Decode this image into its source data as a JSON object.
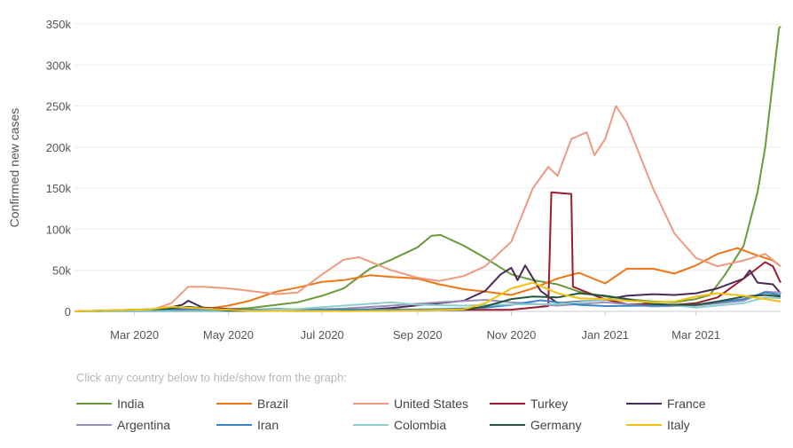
{
  "hint_text": "Click any country below to hide/show from the graph:",
  "chart_data": {
    "type": "line",
    "ylabel": "Confirmed new cases",
    "xlabel": "",
    "ylim": [
      0,
      350000
    ],
    "y_ticks": [
      0,
      50000,
      100000,
      150000,
      200000,
      250000,
      300000,
      350000
    ],
    "y_tick_labels": [
      "0",
      "50k",
      "100k",
      "150k",
      "200k",
      "250k",
      "300k",
      "350k"
    ],
    "x_range": [
      "2020-01-22",
      "2021-04-25"
    ],
    "x_ticks": [
      "2020-03-01",
      "2020-05-01",
      "2020-07-01",
      "2020-09-01",
      "2020-11-01",
      "2021-01-01",
      "2021-03-01"
    ],
    "x_tick_labels": [
      "Mar 2020",
      "May 2020",
      "Jul 2020",
      "Sep 2020",
      "Nov 2020",
      "Jan 2021",
      "Mar 2021"
    ],
    "grid": true,
    "legend_position": "bottom",
    "series": [
      {
        "name": "India",
        "color": "#6a9a3a",
        "points": [
          [
            "2020-01-22",
            0
          ],
          [
            "2020-03-15",
            100
          ],
          [
            "2020-04-15",
            1000
          ],
          [
            "2020-05-15",
            4000
          ],
          [
            "2020-06-15",
            11000
          ],
          [
            "2020-07-01",
            19000
          ],
          [
            "2020-07-15",
            28000
          ],
          [
            "2020-08-01",
            52000
          ],
          [
            "2020-08-15",
            63000
          ],
          [
            "2020-09-01",
            78000
          ],
          [
            "2020-09-10",
            92000
          ],
          [
            "2020-09-16",
            93000
          ],
          [
            "2020-10-01",
            80000
          ],
          [
            "2020-10-15",
            65000
          ],
          [
            "2020-11-01",
            45000
          ],
          [
            "2020-11-15",
            38000
          ],
          [
            "2020-12-01",
            33000
          ],
          [
            "2020-12-15",
            24000
          ],
          [
            "2021-01-01",
            18000
          ],
          [
            "2021-01-15",
            15000
          ],
          [
            "2021-02-01",
            12000
          ],
          [
            "2021-02-15",
            11000
          ],
          [
            "2021-03-01",
            15000
          ],
          [
            "2021-03-10",
            20000
          ],
          [
            "2021-03-20",
            45000
          ],
          [
            "2021-04-01",
            80000
          ],
          [
            "2021-04-10",
            145000
          ],
          [
            "2021-04-15",
            200000
          ],
          [
            "2021-04-20",
            280000
          ],
          [
            "2021-04-24",
            345000
          ],
          [
            "2021-04-25",
            347000
          ]
        ]
      },
      {
        "name": "Brazil",
        "color": "#f07516",
        "points": [
          [
            "2020-01-22",
            0
          ],
          [
            "2020-03-15",
            200
          ],
          [
            "2020-04-15",
            2500
          ],
          [
            "2020-05-01",
            7000
          ],
          [
            "2020-05-15",
            13000
          ],
          [
            "2020-06-01",
            24000
          ],
          [
            "2020-06-15",
            29000
          ],
          [
            "2020-07-01",
            36000
          ],
          [
            "2020-07-15",
            38000
          ],
          [
            "2020-08-01",
            44000
          ],
          [
            "2020-08-15",
            42000
          ],
          [
            "2020-09-01",
            40000
          ],
          [
            "2020-09-15",
            33000
          ],
          [
            "2020-10-01",
            27000
          ],
          [
            "2020-10-15",
            24000
          ],
          [
            "2020-11-01",
            20000
          ],
          [
            "2020-11-15",
            28000
          ],
          [
            "2020-12-01",
            40000
          ],
          [
            "2020-12-15",
            47000
          ],
          [
            "2021-01-01",
            34000
          ],
          [
            "2021-01-15",
            52000
          ],
          [
            "2021-02-01",
            52000
          ],
          [
            "2021-02-15",
            46000
          ],
          [
            "2021-03-01",
            56000
          ],
          [
            "2021-03-15",
            70000
          ],
          [
            "2021-03-28",
            77000
          ],
          [
            "2021-04-10",
            68000
          ],
          [
            "2021-04-20",
            62000
          ],
          [
            "2021-04-25",
            55000
          ]
        ]
      },
      {
        "name": "United States",
        "color": "#ef9980",
        "points": [
          [
            "2020-01-22",
            0
          ],
          [
            "2020-03-10",
            200
          ],
          [
            "2020-03-25",
            10000
          ],
          [
            "2020-04-05",
            30000
          ],
          [
            "2020-04-15",
            30000
          ],
          [
            "2020-05-01",
            28000
          ],
          [
            "2020-05-15",
            25000
          ],
          [
            "2020-06-01",
            21000
          ],
          [
            "2020-06-15",
            23000
          ],
          [
            "2020-07-01",
            45000
          ],
          [
            "2020-07-15",
            63000
          ],
          [
            "2020-07-25",
            66000
          ],
          [
            "2020-08-15",
            50000
          ],
          [
            "2020-09-01",
            41000
          ],
          [
            "2020-09-15",
            37000
          ],
          [
            "2020-10-01",
            43000
          ],
          [
            "2020-10-15",
            55000
          ],
          [
            "2020-11-01",
            85000
          ],
          [
            "2020-11-15",
            150000
          ],
          [
            "2020-11-25",
            176000
          ],
          [
            "2020-12-01",
            165000
          ],
          [
            "2020-12-10",
            210000
          ],
          [
            "2020-12-20",
            218000
          ],
          [
            "2020-12-25",
            190000
          ],
          [
            "2021-01-01",
            210000
          ],
          [
            "2021-01-08",
            250000
          ],
          [
            "2021-01-15",
            230000
          ],
          [
            "2021-02-01",
            150000
          ],
          [
            "2021-02-15",
            95000
          ],
          [
            "2021-03-01",
            65000
          ],
          [
            "2021-03-15",
            55000
          ],
          [
            "2021-04-01",
            62000
          ],
          [
            "2021-04-15",
            70000
          ],
          [
            "2021-04-25",
            55000
          ]
        ]
      },
      {
        "name": "Turkey",
        "color": "#9b1c2e",
        "points": [
          [
            "2020-01-22",
            0
          ],
          [
            "2020-03-20",
            500
          ],
          [
            "2020-04-15",
            4500
          ],
          [
            "2020-05-15",
            1500
          ],
          [
            "2020-07-15",
            1000
          ],
          [
            "2020-09-15",
            1600
          ],
          [
            "2020-11-01",
            2000
          ],
          [
            "2020-11-25",
            6500
          ],
          [
            "2020-11-27",
            145000
          ],
          [
            "2020-12-10",
            143000
          ],
          [
            "2020-12-11",
            30000
          ],
          [
            "2020-12-31",
            15000
          ],
          [
            "2021-01-15",
            9000
          ],
          [
            "2021-02-15",
            8000
          ],
          [
            "2021-03-01",
            10000
          ],
          [
            "2021-03-15",
            17000
          ],
          [
            "2021-04-01",
            40000
          ],
          [
            "2021-04-15",
            60000
          ],
          [
            "2021-04-20",
            55000
          ],
          [
            "2021-04-25",
            35000
          ]
        ]
      },
      {
        "name": "France",
        "color": "#4a2a55",
        "points": [
          [
            "2020-01-22",
            0
          ],
          [
            "2020-03-15",
            1000
          ],
          [
            "2020-04-01",
            8000
          ],
          [
            "2020-04-05",
            13000
          ],
          [
            "2020-04-15",
            4000
          ],
          [
            "2020-05-15",
            500
          ],
          [
            "2020-07-15",
            800
          ],
          [
            "2020-08-15",
            4000
          ],
          [
            "2020-09-15",
            10000
          ],
          [
            "2020-10-01",
            13000
          ],
          [
            "2020-10-15",
            25000
          ],
          [
            "2020-10-25",
            45000
          ],
          [
            "2020-11-01",
            53000
          ],
          [
            "2020-11-05",
            38000
          ],
          [
            "2020-11-10",
            56000
          ],
          [
            "2020-11-20",
            25000
          ],
          [
            "2020-12-01",
            10000
          ],
          [
            "2020-12-15",
            12000
          ],
          [
            "2021-01-01",
            14000
          ],
          [
            "2021-01-15",
            19000
          ],
          [
            "2021-02-01",
            21000
          ],
          [
            "2021-02-15",
            20000
          ],
          [
            "2021-03-01",
            22000
          ],
          [
            "2021-03-15",
            28000
          ],
          [
            "2021-04-01",
            40000
          ],
          [
            "2021-04-05",
            50000
          ],
          [
            "2021-04-10",
            35000
          ],
          [
            "2021-04-20",
            33000
          ],
          [
            "2021-04-25",
            22000
          ]
        ]
      },
      {
        "name": "Argentina",
        "color": "#9a8fb8",
        "points": [
          [
            "2020-01-22",
            0
          ],
          [
            "2020-05-01",
            100
          ],
          [
            "2020-06-15",
            1500
          ],
          [
            "2020-07-15",
            3500
          ],
          [
            "2020-08-15",
            7000
          ],
          [
            "2020-09-15",
            11000
          ],
          [
            "2020-10-15",
            14000
          ],
          [
            "2020-11-01",
            11000
          ],
          [
            "2020-12-01",
            7000
          ],
          [
            "2021-01-01",
            11000
          ],
          [
            "2021-02-01",
            6000
          ],
          [
            "2021-03-01",
            7000
          ],
          [
            "2021-04-01",
            13000
          ],
          [
            "2021-04-15",
            24000
          ],
          [
            "2021-04-25",
            23000
          ]
        ]
      },
      {
        "name": "Iran",
        "color": "#3b86c6",
        "points": [
          [
            "2020-01-22",
            0
          ],
          [
            "2020-03-15",
            1500
          ],
          [
            "2020-04-01",
            3000
          ],
          [
            "2020-05-01",
            1200
          ],
          [
            "2020-06-01",
            3000
          ],
          [
            "2020-07-01",
            2500
          ],
          [
            "2020-08-01",
            2500
          ],
          [
            "2020-09-01",
            2300
          ],
          [
            "2020-10-01",
            3500
          ],
          [
            "2020-10-15",
            4500
          ],
          [
            "2020-11-01",
            8000
          ],
          [
            "2020-11-20",
            13500
          ],
          [
            "2020-12-15",
            8000
          ],
          [
            "2021-01-01",
            6500
          ],
          [
            "2021-02-01",
            7000
          ],
          [
            "2021-03-01",
            8000
          ],
          [
            "2021-04-01",
            15000
          ],
          [
            "2021-04-15",
            23000
          ],
          [
            "2021-04-25",
            20000
          ]
        ]
      },
      {
        "name": "Colombia",
        "color": "#8ecfce",
        "points": [
          [
            "2020-01-22",
            0
          ],
          [
            "2020-05-01",
            300
          ],
          [
            "2020-06-15",
            3000
          ],
          [
            "2020-07-15",
            7000
          ],
          [
            "2020-08-15",
            11000
          ],
          [
            "2020-09-01",
            8000
          ],
          [
            "2020-10-01",
            7000
          ],
          [
            "2020-11-01",
            8500
          ],
          [
            "2020-12-01",
            9000
          ],
          [
            "2021-01-10",
            16000
          ],
          [
            "2021-02-01",
            10000
          ],
          [
            "2021-03-01",
            4500
          ],
          [
            "2021-04-01",
            10000
          ],
          [
            "2021-04-15",
            17000
          ],
          [
            "2021-04-25",
            16000
          ]
        ]
      },
      {
        "name": "Germany",
        "color": "#25563d",
        "points": [
          [
            "2020-01-22",
            0
          ],
          [
            "2020-03-20",
            3000
          ],
          [
            "2020-04-05",
            5500
          ],
          [
            "2020-05-01",
            1000
          ],
          [
            "2020-06-15",
            400
          ],
          [
            "2020-08-01",
            700
          ],
          [
            "2020-09-01",
            1300
          ],
          [
            "2020-10-01",
            2000
          ],
          [
            "2020-10-15",
            6000
          ],
          [
            "2020-11-01",
            15000
          ],
          [
            "2020-11-15",
            18000
          ],
          [
            "2020-12-01",
            17000
          ],
          [
            "2020-12-15",
            22000
          ],
          [
            "2021-01-01",
            19000
          ],
          [
            "2021-01-15",
            15000
          ],
          [
            "2021-02-01",
            9000
          ],
          [
            "2021-02-15",
            8000
          ],
          [
            "2021-03-01",
            8000
          ],
          [
            "2021-03-15",
            12000
          ],
          [
            "2021-04-01",
            18000
          ],
          [
            "2021-04-15",
            20000
          ],
          [
            "2021-04-25",
            18000
          ]
        ]
      },
      {
        "name": "Italy",
        "color": "#f2c10f",
        "points": [
          [
            "2020-01-22",
            0
          ],
          [
            "2020-03-10",
            2500
          ],
          [
            "2020-03-25",
            5500
          ],
          [
            "2020-04-15",
            3500
          ],
          [
            "2020-05-15",
            700
          ],
          [
            "2020-07-15",
            300
          ],
          [
            "2020-08-15",
            900
          ],
          [
            "2020-09-15",
            1600
          ],
          [
            "2020-10-01",
            2500
          ],
          [
            "2020-10-15",
            10000
          ],
          [
            "2020-11-01",
            28000
          ],
          [
            "2020-11-15",
            35000
          ],
          [
            "2020-12-01",
            22000
          ],
          [
            "2020-12-15",
            16000
          ],
          [
            "2021-01-01",
            15000
          ],
          [
            "2021-01-15",
            13000
          ],
          [
            "2021-02-01",
            11000
          ],
          [
            "2021-02-15",
            12000
          ],
          [
            "2021-03-01",
            18000
          ],
          [
            "2021-03-15",
            22000
          ],
          [
            "2021-04-01",
            19000
          ],
          [
            "2021-04-15",
            15000
          ],
          [
            "2021-04-25",
            12000
          ]
        ]
      }
    ]
  }
}
